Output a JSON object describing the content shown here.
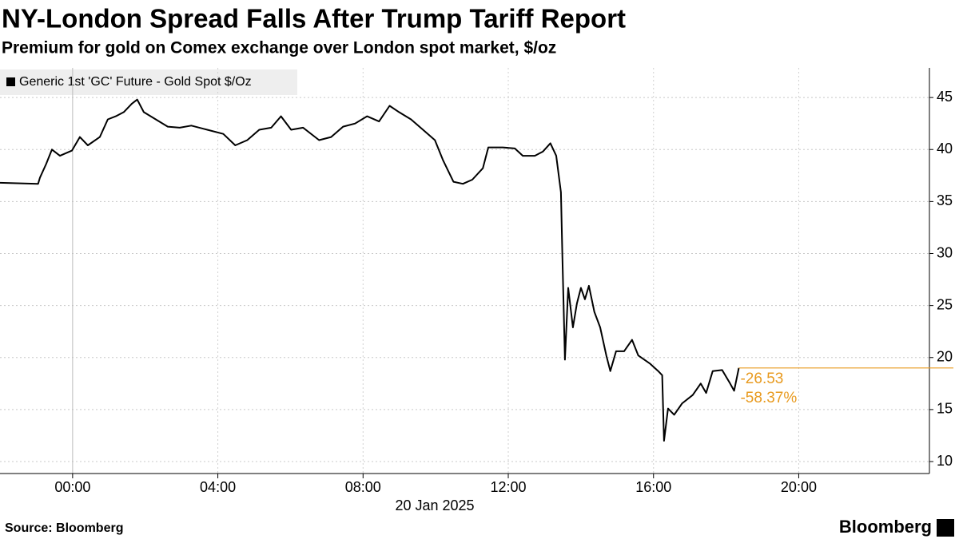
{
  "chart_data": {
    "type": "line",
    "title": "NY-London Spread Falls After Trump Tariff Report",
    "subtitle": "Premium for gold on Comex exchange over London spot market, $/oz",
    "xlabel": "20 Jan 2025",
    "x": [
      -2,
      -0.95,
      -0.9,
      -0.73,
      -0.57,
      -0.35,
      -0.02,
      0.2,
      0.42,
      0.75,
      0.97,
      1.19,
      1.41,
      1.63,
      1.78,
      1.96,
      2.29,
      2.62,
      2.95,
      3.27,
      3.71,
      4.15,
      4.48,
      4.81,
      5.14,
      5.47,
      5.74,
      6.02,
      6.35,
      6.79,
      7.12,
      7.45,
      7.78,
      8.11,
      8.44,
      8.73,
      8.99,
      9.32,
      9.65,
      9.98,
      10.2,
      10.49,
      10.75,
      11.01,
      11.3,
      11.45,
      11.85,
      12.18,
      12.4,
      12.73,
      12.95,
      13.16,
      13.32,
      13.45,
      13.49,
      13.56,
      13.65,
      13.78,
      13.89,
      14.0,
      14.11,
      14.22,
      14.37,
      14.53,
      14.7,
      14.81,
      14.97,
      15.19,
      15.41,
      15.58,
      15.91,
      16.13,
      16.24,
      16.29,
      16.4,
      16.57,
      16.79,
      17.08,
      17.3,
      17.45,
      17.63,
      17.89,
      18.11,
      18.22,
      18.35
    ],
    "series": [
      {
        "name": "Generic 1st 'GC' Future - Gold Spot $/Oz",
        "color": "#000000",
        "values": [
          36.8,
          36.7,
          37.3,
          38.6,
          40.0,
          39.4,
          39.9,
          41.2,
          40.4,
          41.2,
          42.9,
          43.2,
          43.6,
          44.4,
          44.8,
          43.6,
          42.9,
          42.2,
          42.1,
          42.3,
          41.9,
          41.5,
          40.4,
          40.9,
          41.9,
          42.1,
          43.2,
          41.9,
          42.1,
          40.9,
          41.2,
          42.2,
          42.5,
          43.2,
          42.7,
          44.2,
          43.6,
          42.9,
          41.9,
          40.9,
          39.0,
          36.9,
          36.7,
          37.1,
          38.2,
          40.2,
          40.2,
          40.1,
          39.4,
          39.4,
          39.8,
          40.6,
          39.4,
          35.9,
          29.8,
          19.8,
          26.7,
          22.9,
          25.2,
          26.7,
          25.6,
          26.9,
          24.4,
          22.9,
          20.2,
          18.7,
          20.6,
          20.6,
          21.7,
          20.2,
          19.4,
          18.7,
          18.3,
          12.0,
          15.1,
          14.5,
          15.6,
          16.4,
          17.5,
          16.6,
          18.7,
          18.8,
          17.5,
          16.8,
          19.0
        ]
      }
    ],
    "annotations": [
      "-26.53",
      "-58.37%"
    ],
    "annotation_color": "#e89a1f",
    "xlim": [
      -2,
      23.6
    ],
    "xticks": [
      {
        "value": 0,
        "label": "00:00"
      },
      {
        "value": 4,
        "label": "04:00"
      },
      {
        "value": 8,
        "label": "08:00"
      },
      {
        "value": 12,
        "label": "12:00"
      },
      {
        "value": 16,
        "label": "16:00"
      },
      {
        "value": 20,
        "label": "20:00"
      }
    ],
    "ylim": [
      8.85,
      47.85
    ],
    "yticks": [
      10,
      15,
      20,
      25,
      30,
      35,
      40,
      45
    ],
    "grid": true
  },
  "footer": {
    "source": "Source: Bloomberg",
    "brand": "Bloomberg"
  }
}
